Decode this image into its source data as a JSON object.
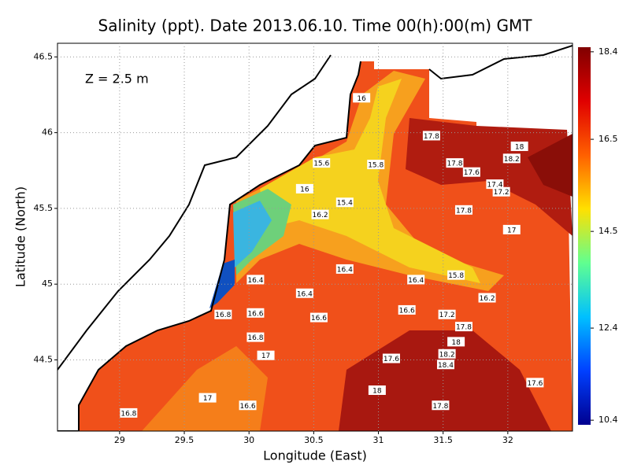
{
  "chart_data": {
    "type": "contour",
    "title": "Salinity (ppt). Date 2013.06.10. Time 00(h):00(m) GMT",
    "annotation": "Z = 2.5 m",
    "xlabel": "Longitude (East)",
    "ylabel": "Latitude (North)",
    "xlim": [
      28.52,
      32.5
    ],
    "ylim": [
      44.03,
      46.59
    ],
    "xticks": [
      29,
      29.5,
      30,
      30.5,
      31,
      31.5,
      32
    ],
    "yticks": [
      44.5,
      45,
      45.5,
      46,
      46.5
    ],
    "grid": true,
    "colorbar": {
      "lim": [
        10.3,
        18.5
      ],
      "ticks": [
        10.4,
        12.4,
        14.5,
        16.5,
        18.4
      ],
      "colors": [
        "#00008f",
        "#0040ff",
        "#00c0ff",
        "#60ff90",
        "#ffe000",
        "#ff6000",
        "#e00000",
        "#800000"
      ]
    },
    "contour_labels": [
      {
        "x": 29.07,
        "y": 44.15,
        "value": 16.8
      },
      {
        "x": 29.68,
        "y": 44.25,
        "value": 17
      },
      {
        "x": 29.99,
        "y": 44.2,
        "value": 16.6
      },
      {
        "x": 30.13,
        "y": 44.53,
        "value": 17
      },
      {
        "x": 30.05,
        "y": 44.65,
        "value": 16.8
      },
      {
        "x": 30.05,
        "y": 44.81,
        "value": 16.6
      },
      {
        "x": 29.8,
        "y": 44.8,
        "value": 16.8
      },
      {
        "x": 30.05,
        "y": 45.03,
        "value": 16.4
      },
      {
        "x": 30.43,
        "y": 44.94,
        "value": 16.4
      },
      {
        "x": 30.54,
        "y": 44.78,
        "value": 16.6
      },
      {
        "x": 30.74,
        "y": 45.1,
        "value": 16.4
      },
      {
        "x": 30.55,
        "y": 45.46,
        "value": 16.2
      },
      {
        "x": 30.43,
        "y": 45.63,
        "value": 16
      },
      {
        "x": 30.74,
        "y": 45.54,
        "value": 15.4
      },
      {
        "x": 30.56,
        "y": 45.8,
        "value": 15.6
      },
      {
        "x": 30.98,
        "y": 45.79,
        "value": 15.8
      },
      {
        "x": 30.87,
        "y": 46.23,
        "value": 16
      },
      {
        "x": 31.41,
        "y": 45.98,
        "value": 17.8
      },
      {
        "x": 31.59,
        "y": 45.8,
        "value": 17.8
      },
      {
        "x": 31.72,
        "y": 45.74,
        "value": 17.6
      },
      {
        "x": 32.09,
        "y": 45.91,
        "value": 18
      },
      {
        "x": 32.03,
        "y": 45.83,
        "value": 18.2
      },
      {
        "x": 31.9,
        "y": 45.66,
        "value": 17.4
      },
      {
        "x": 31.95,
        "y": 45.61,
        "value": 17.2
      },
      {
        "x": 31.66,
        "y": 45.49,
        "value": 17.8
      },
      {
        "x": 32.03,
        "y": 45.36,
        "value": 17
      },
      {
        "x": 31.29,
        "y": 45.03,
        "value": 16.4
      },
      {
        "x": 31.6,
        "y": 45.06,
        "value": 15.8
      },
      {
        "x": 31.22,
        "y": 44.83,
        "value": 16.6
      },
      {
        "x": 31.53,
        "y": 44.8,
        "value": 17.2
      },
      {
        "x": 31.84,
        "y": 44.91,
        "value": 16.2
      },
      {
        "x": 31.66,
        "y": 44.72,
        "value": 17.8
      },
      {
        "x": 31.6,
        "y": 44.62,
        "value": 18
      },
      {
        "x": 31.53,
        "y": 44.54,
        "value": 18.2
      },
      {
        "x": 31.52,
        "y": 44.47,
        "value": 18.4
      },
      {
        "x": 31.1,
        "y": 44.51,
        "value": 17.6
      },
      {
        "x": 30.99,
        "y": 44.3,
        "value": 18
      },
      {
        "x": 31.48,
        "y": 44.2,
        "value": 17.8
      },
      {
        "x": 32.21,
        "y": 44.35,
        "value": 17.6
      }
    ]
  }
}
